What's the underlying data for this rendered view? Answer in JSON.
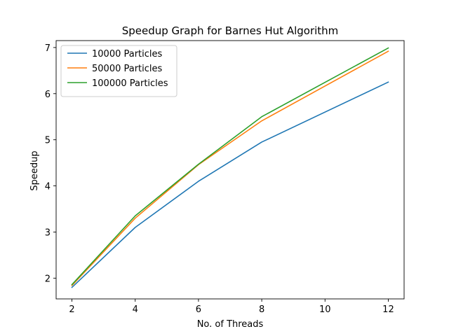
{
  "chart_data": {
    "type": "line",
    "title": "Speedup Graph for Barnes Hut Algorithm",
    "xlabel": "No. of Threads",
    "ylabel": "Speedup",
    "x": [
      2,
      4,
      6,
      8,
      10,
      12
    ],
    "xlim": [
      1.5,
      12.5
    ],
    "ylim": [
      1.55,
      7.15
    ],
    "xticks": [
      2,
      4,
      6,
      8,
      10,
      12
    ],
    "yticks": [
      2,
      3,
      4,
      5,
      6,
      7
    ],
    "grid": false,
    "legend_position": "top-left",
    "series": [
      {
        "name": "10000 Particles",
        "color": "#1f77b4",
        "x": [
          2,
          4,
          6,
          8,
          12
        ],
        "values": [
          1.8,
          3.1,
          4.1,
          4.95,
          6.25
        ]
      },
      {
        "name": "50000 Particles",
        "color": "#ff7f0e",
        "x": [
          2,
          4,
          6,
          8,
          12
        ],
        "values": [
          1.84,
          3.3,
          4.46,
          5.41,
          6.92
        ]
      },
      {
        "name": "100000 Particles",
        "color": "#2ca02c",
        "x": [
          2,
          4,
          6,
          8,
          12
        ],
        "values": [
          1.86,
          3.35,
          4.47,
          5.5,
          6.99
        ]
      }
    ]
  }
}
